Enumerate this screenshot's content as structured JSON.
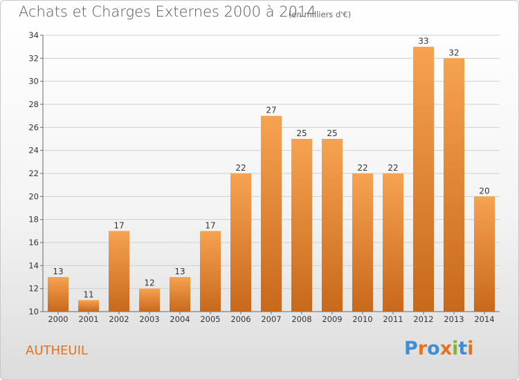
{
  "title": "Achats et Charges Externes 2000 à 2014",
  "subtitle": "(en milliers d'€)",
  "commune": "AUTHEUIL",
  "logo": {
    "letters": [
      {
        "char": "P",
        "color": "#3a8fd6"
      },
      {
        "char": "r",
        "color": "#e8721c"
      },
      {
        "char": "o",
        "color": "#3a8fd6"
      },
      {
        "char": "x",
        "color": "#e8721c"
      },
      {
        "char": "i",
        "color": "#7ab833"
      },
      {
        "char": "t",
        "color": "#3a8fd6"
      },
      {
        "char": "i",
        "color": "#e8721c"
      }
    ]
  },
  "colors": {
    "bar_light": "#f6a351",
    "bar_dark": "#c8681b",
    "commune": "#e8721c",
    "grid": "#cfcfcf"
  },
  "chart_data": {
    "type": "bar",
    "categories": [
      "2000",
      "2001",
      "2002",
      "2003",
      "2004",
      "2005",
      "2006",
      "2007",
      "2008",
      "2009",
      "2010",
      "2011",
      "2012",
      "2013",
      "2014"
    ],
    "values": [
      13,
      11,
      17,
      12,
      13,
      17,
      22,
      27,
      25,
      25,
      22,
      22,
      33,
      32,
      20
    ],
    "ylim": [
      10,
      34
    ],
    "yticks": [
      10,
      12,
      14,
      16,
      18,
      20,
      22,
      24,
      26,
      28,
      30,
      32,
      34
    ],
    "grid": true
  }
}
